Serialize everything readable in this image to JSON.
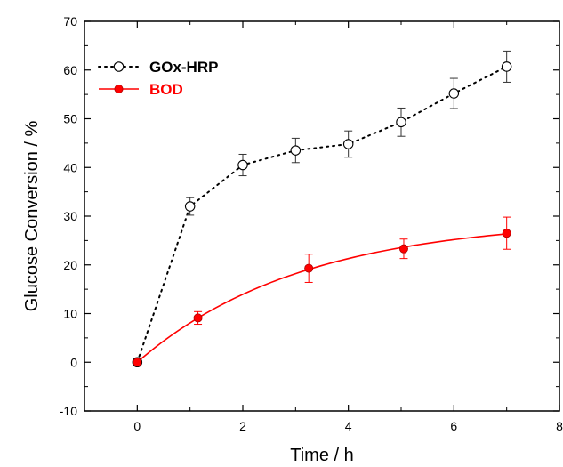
{
  "chart_data": {
    "type": "line",
    "title": "",
    "xlabel": "Time / h",
    "ylabel": "Glucose Conversion / %",
    "xlim": [
      -1,
      8
    ],
    "ylim": [
      -10,
      70
    ],
    "xticks": [
      0,
      2,
      4,
      6,
      8
    ],
    "yticks": [
      -10,
      0,
      10,
      20,
      30,
      40,
      50,
      60,
      70
    ],
    "xtick_labels": [
      "0",
      "2",
      "4",
      "6",
      "8"
    ],
    "ytick_labels": [
      "-10",
      "0",
      "10",
      "20",
      "30",
      "40",
      "50",
      "60",
      "70"
    ],
    "grid": false,
    "legend_position": "top-left",
    "series": [
      {
        "name": "GOx-HRP",
        "color": "#000000",
        "line_style": "dotted",
        "marker": "open-circle",
        "x": [
          0,
          1,
          2,
          3,
          4,
          5,
          6,
          7
        ],
        "y": [
          0,
          32,
          40.5,
          43.5,
          44.8,
          49.3,
          55.2,
          60.7
        ],
        "error": [
          0,
          1.8,
          2.2,
          2.5,
          2.7,
          2.9,
          3.1,
          3.2
        ],
        "error_color": "#333333"
      },
      {
        "name": "BOD",
        "color": "#ff0000",
        "line_style": "solid-smooth-fit",
        "marker": "filled-circle",
        "x": [
          0,
          1.15,
          3.25,
          5.05,
          7
        ],
        "y": [
          0,
          9.1,
          19.3,
          23.3,
          26.5
        ],
        "error": [
          0,
          1.3,
          2.9,
          2.0,
          3.3
        ],
        "error_color": "#ff0000",
        "fit_ymax": 29.5,
        "fit_rate": 0.32
      }
    ]
  }
}
